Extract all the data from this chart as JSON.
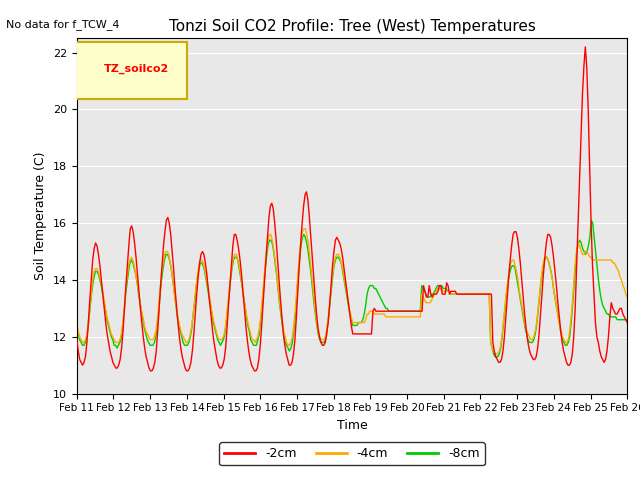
{
  "title": "Tonzi Soil CO2 Profile: Tree (West) Temperatures",
  "no_data_label": "No data for f_TCW_4",
  "xlabel": "Time",
  "ylabel": "Soil Temperature (C)",
  "ylim": [
    10,
    22.5
  ],
  "yticks": [
    10,
    12,
    14,
    16,
    18,
    20,
    22
  ],
  "xtick_labels": [
    "Feb 11",
    "Feb 12",
    "Feb 13",
    "Feb 14",
    "Feb 15",
    "Feb 16",
    "Feb 17",
    "Feb 18",
    "Feb 19",
    "Feb 20",
    "Feb 21",
    "Feb 22",
    "Feb 23",
    "Feb 24",
    "Feb 25",
    "Feb 26"
  ],
  "legend_label": "TZ_soilco2",
  "legend_box_color": "#ffffcc",
  "legend_box_edge": "#ccaa00",
  "series_labels": [
    "-2cm",
    "-4cm",
    "-8cm"
  ],
  "series_colors": [
    "#ff0000",
    "#ffaa00",
    "#00cc00"
  ],
  "bg_color": "#e8e8e8",
  "grid_color": "#ffffff",
  "n_days": 16,
  "times_per_day": 24,
  "red_data": [
    11.9,
    11.5,
    11.2,
    11.1,
    11.0,
    11.1,
    11.3,
    11.8,
    12.5,
    13.3,
    14.0,
    14.7,
    15.1,
    15.3,
    15.2,
    14.9,
    14.5,
    14.0,
    13.5,
    13.0,
    12.5,
    12.1,
    11.8,
    11.5,
    11.3,
    11.1,
    11.0,
    10.9,
    10.9,
    11.0,
    11.2,
    11.6,
    12.2,
    13.0,
    13.8,
    14.5,
    15.2,
    15.8,
    15.9,
    15.7,
    15.3,
    14.8,
    14.2,
    13.6,
    13.0,
    12.5,
    12.0,
    11.6,
    11.3,
    11.1,
    10.9,
    10.8,
    10.8,
    10.9,
    11.1,
    11.5,
    12.2,
    13.0,
    13.8,
    14.5,
    15.2,
    15.7,
    16.1,
    16.2,
    16.0,
    15.6,
    15.0,
    14.4,
    13.7,
    13.1,
    12.5,
    12.0,
    11.6,
    11.3,
    11.1,
    10.9,
    10.8,
    10.8,
    10.9,
    11.1,
    11.5,
    12.1,
    12.8,
    13.5,
    14.1,
    14.6,
    14.9,
    15.0,
    14.9,
    14.6,
    14.2,
    13.7,
    13.2,
    12.7,
    12.2,
    11.8,
    11.5,
    11.2,
    11.0,
    10.9,
    10.9,
    11.0,
    11.2,
    11.6,
    12.3,
    13.1,
    13.8,
    14.5,
    15.2,
    15.6,
    15.6,
    15.4,
    15.1,
    14.7,
    14.2,
    13.6,
    13.0,
    12.4,
    11.9,
    11.5,
    11.2,
    11.0,
    10.9,
    10.8,
    10.8,
    10.9,
    11.2,
    11.7,
    12.4,
    13.2,
    14.0,
    14.8,
    15.5,
    16.2,
    16.6,
    16.7,
    16.5,
    16.0,
    15.4,
    14.7,
    14.0,
    13.3,
    12.7,
    12.1,
    11.7,
    11.4,
    11.2,
    11.0,
    11.0,
    11.1,
    11.4,
    11.9,
    12.7,
    13.6,
    14.5,
    15.3,
    16.0,
    16.6,
    17.0,
    17.1,
    16.8,
    16.2,
    15.5,
    14.8,
    14.1,
    13.4,
    12.8,
    12.3,
    12.0,
    11.8,
    11.7,
    11.7,
    11.8,
    12.1,
    12.5,
    13.1,
    13.8,
    14.5,
    15.0,
    15.4,
    15.5,
    15.4,
    15.3,
    15.1,
    14.8,
    14.4,
    14.0,
    13.6,
    13.2,
    12.8,
    12.4,
    12.1,
    12.1,
    12.1,
    12.1,
    12.1,
    12.1,
    12.1,
    12.1,
    12.1,
    12.1,
    12.1,
    12.1,
    12.1,
    12.1,
    12.9,
    13.0,
    12.9,
    12.9,
    12.9,
    12.9,
    12.9,
    12.9,
    12.9,
    12.9,
    12.9,
    12.9,
    12.9,
    12.9,
    12.9,
    12.9,
    12.9,
    12.9,
    12.9,
    12.9,
    12.9,
    12.9,
    12.9,
    12.9,
    12.9,
    12.9,
    12.9,
    12.9,
    12.9,
    12.9,
    12.9,
    12.9,
    12.9,
    12.9,
    12.9,
    13.8,
    13.6,
    13.4,
    13.4,
    13.8,
    13.5,
    13.4,
    13.5,
    13.5,
    13.5,
    13.6,
    13.8,
    13.8,
    13.5,
    13.5,
    13.5,
    13.9,
    13.8,
    13.5,
    13.6,
    13.6,
    13.6,
    13.6,
    13.5,
    13.5,
    13.5,
    13.5,
    13.5,
    13.5,
    13.5,
    13.5,
    13.5,
    13.5,
    13.5,
    13.5,
    13.5,
    13.5,
    13.5,
    13.5,
    13.5,
    13.5,
    13.5,
    13.5,
    13.5,
    13.5,
    13.5,
    13.5,
    13.5,
    11.8,
    11.5,
    11.3,
    11.2,
    11.1,
    11.1,
    11.2,
    11.5,
    12.0,
    12.7,
    13.4,
    14.1,
    14.7,
    15.2,
    15.6,
    15.7,
    15.7,
    15.5,
    15.1,
    14.6,
    14.0,
    13.4,
    12.8,
    12.3,
    11.9,
    11.6,
    11.4,
    11.3,
    11.2,
    11.2,
    11.3,
    11.6,
    12.1,
    12.8,
    13.5,
    14.2,
    14.8,
    15.3,
    15.6,
    15.6,
    15.5,
    15.2,
    14.8,
    14.3,
    13.8,
    13.2,
    12.7,
    12.2,
    11.8,
    11.5,
    11.3,
    11.1,
    11.0,
    11.0,
    11.1,
    11.4,
    12.0,
    13.0,
    14.5,
    16.0,
    17.5,
    19.0,
    20.5,
    21.5,
    22.2,
    21.5,
    20.0,
    18.0,
    16.0,
    14.5,
    13.5,
    12.5,
    12.0,
    11.8,
    11.5,
    11.3,
    11.2,
    11.1,
    11.2,
    11.5,
    12.0,
    12.7,
    13.2,
    13.0,
    12.9,
    12.8,
    12.8,
    12.9,
    13.0,
    13.0,
    12.8,
    12.7,
    12.6,
    12.5
  ],
  "orange_data": [
    12.4,
    12.2,
    12.0,
    11.9,
    11.8,
    11.8,
    11.9,
    12.1,
    12.5,
    13.0,
    13.5,
    14.0,
    14.3,
    14.4,
    14.4,
    14.3,
    14.1,
    13.9,
    13.6,
    13.3,
    13.0,
    12.7,
    12.5,
    12.3,
    12.1,
    12.0,
    11.9,
    11.8,
    11.8,
    11.8,
    11.9,
    12.1,
    12.5,
    13.0,
    13.6,
    14.1,
    14.5,
    14.7,
    14.8,
    14.7,
    14.5,
    14.2,
    13.9,
    13.6,
    13.2,
    12.9,
    12.7,
    12.4,
    12.2,
    12.1,
    12.0,
    11.9,
    11.9,
    11.9,
    12.0,
    12.2,
    12.6,
    13.1,
    13.7,
    14.2,
    14.6,
    14.9,
    15.0,
    15.0,
    14.9,
    14.6,
    14.3,
    13.9,
    13.5,
    13.1,
    12.8,
    12.5,
    12.3,
    12.1,
    12.0,
    11.9,
    11.8,
    11.8,
    11.9,
    12.1,
    12.4,
    12.8,
    13.3,
    13.8,
    14.2,
    14.5,
    14.7,
    14.7,
    14.6,
    14.4,
    14.1,
    13.8,
    13.5,
    13.2,
    12.9,
    12.6,
    12.4,
    12.2,
    12.0,
    11.9,
    11.9,
    11.9,
    12.0,
    12.2,
    12.6,
    13.1,
    13.6,
    14.1,
    14.5,
    14.8,
    14.9,
    14.9,
    14.7,
    14.5,
    14.2,
    13.8,
    13.5,
    13.1,
    12.8,
    12.5,
    12.3,
    12.1,
    11.9,
    11.9,
    11.8,
    11.9,
    12.0,
    12.3,
    12.7,
    13.3,
    13.9,
    14.5,
    15.0,
    15.4,
    15.6,
    15.6,
    15.4,
    15.1,
    14.7,
    14.3,
    13.8,
    13.3,
    12.9,
    12.5,
    12.2,
    12.0,
    11.8,
    11.7,
    11.7,
    11.8,
    12.0,
    12.4,
    12.9,
    13.6,
    14.3,
    14.9,
    15.4,
    15.7,
    15.8,
    15.8,
    15.6,
    15.3,
    14.9,
    14.4,
    13.9,
    13.4,
    12.9,
    12.5,
    12.2,
    12.0,
    11.9,
    11.9,
    11.9,
    12.0,
    12.3,
    12.7,
    13.2,
    13.7,
    14.2,
    14.6,
    14.8,
    14.9,
    14.9,
    14.8,
    14.6,
    14.4,
    14.1,
    13.8,
    13.5,
    13.2,
    12.9,
    12.7,
    12.5,
    12.5,
    12.5,
    12.5,
    12.5,
    12.5,
    12.5,
    12.5,
    12.5,
    12.6,
    12.8,
    12.8,
    12.9,
    12.9,
    12.9,
    12.8,
    12.8,
    12.8,
    12.8,
    12.8,
    12.8,
    12.8,
    12.8,
    12.7,
    12.7,
    12.7,
    12.7,
    12.7,
    12.7,
    12.7,
    12.7,
    12.7,
    12.7,
    12.7,
    12.7,
    12.7,
    12.7,
    12.7,
    12.7,
    12.7,
    12.7,
    12.7,
    12.7,
    12.7,
    12.7,
    12.7,
    12.7,
    12.7,
    13.5,
    13.4,
    13.3,
    13.2,
    13.2,
    13.2,
    13.2,
    13.3,
    13.4,
    13.5,
    13.6,
    13.7,
    13.7,
    13.7,
    13.7,
    13.6,
    13.6,
    13.6,
    13.6,
    13.6,
    13.5,
    13.5,
    13.5,
    13.5,
    13.5,
    13.5,
    13.5,
    13.5,
    13.5,
    13.5,
    13.5,
    13.5,
    13.5,
    13.5,
    13.5,
    13.5,
    13.5,
    13.5,
    13.5,
    13.5,
    13.5,
    13.5,
    13.5,
    13.5,
    13.5,
    13.5,
    13.5,
    13.5,
    11.8,
    11.6,
    11.5,
    11.4,
    11.4,
    11.4,
    11.5,
    11.7,
    12.1,
    12.6,
    13.1,
    13.6,
    14.0,
    14.4,
    14.6,
    14.7,
    14.7,
    14.5,
    14.3,
    14.0,
    13.6,
    13.3,
    13.0,
    12.7,
    12.4,
    12.2,
    12.1,
    12.0,
    11.9,
    11.9,
    12.0,
    12.2,
    12.5,
    13.0,
    13.5,
    14.0,
    14.4,
    14.7,
    14.8,
    14.8,
    14.7,
    14.5,
    14.3,
    14.0,
    13.6,
    13.3,
    13.0,
    12.7,
    12.4,
    12.2,
    12.0,
    11.9,
    11.8,
    11.8,
    11.9,
    12.2,
    12.7,
    13.3,
    14.0,
    14.7,
    15.1,
    15.3,
    15.2,
    15.0,
    14.9,
    14.9,
    15.0,
    15.0,
    14.9,
    14.8,
    14.8,
    14.7,
    14.7,
    14.7,
    14.7,
    14.7,
    14.7,
    14.7,
    14.7,
    14.7,
    14.7,
    14.7,
    14.7,
    14.7,
    14.7,
    14.6,
    14.6,
    14.5,
    14.4,
    14.3,
    14.1,
    14.0,
    13.8,
    13.7,
    13.5,
    13.4
  ],
  "green_data": [
    12.3,
    12.1,
    11.9,
    11.8,
    11.7,
    11.7,
    11.8,
    12.0,
    12.4,
    12.9,
    13.4,
    13.8,
    14.1,
    14.3,
    14.3,
    14.2,
    14.0,
    13.8,
    13.5,
    13.2,
    12.9,
    12.6,
    12.4,
    12.2,
    12.0,
    11.9,
    11.7,
    11.7,
    11.6,
    11.7,
    11.8,
    12.0,
    12.4,
    12.9,
    13.5,
    13.9,
    14.3,
    14.6,
    14.7,
    14.6,
    14.4,
    14.2,
    13.9,
    13.5,
    13.2,
    12.9,
    12.6,
    12.3,
    12.1,
    11.9,
    11.8,
    11.7,
    11.7,
    11.7,
    11.8,
    12.0,
    12.4,
    12.9,
    13.5,
    14.0,
    14.4,
    14.7,
    14.9,
    14.9,
    14.8,
    14.6,
    14.3,
    13.9,
    13.5,
    13.1,
    12.7,
    12.4,
    12.2,
    12.0,
    11.8,
    11.7,
    11.7,
    11.7,
    11.8,
    12.0,
    12.3,
    12.8,
    13.2,
    13.7,
    14.1,
    14.4,
    14.6,
    14.6,
    14.5,
    14.3,
    14.0,
    13.7,
    13.4,
    13.1,
    12.8,
    12.5,
    12.3,
    12.1,
    11.9,
    11.8,
    11.7,
    11.8,
    11.9,
    12.1,
    12.5,
    13.0,
    13.5,
    14.0,
    14.4,
    14.7,
    14.8,
    14.8,
    14.7,
    14.4,
    14.1,
    13.8,
    13.4,
    13.1,
    12.7,
    12.4,
    12.2,
    11.9,
    11.8,
    11.7,
    11.7,
    11.7,
    11.9,
    12.1,
    12.6,
    13.1,
    13.7,
    14.3,
    14.8,
    15.2,
    15.4,
    15.4,
    15.3,
    15.0,
    14.6,
    14.2,
    13.7,
    13.2,
    12.8,
    12.4,
    12.1,
    11.8,
    11.7,
    11.6,
    11.5,
    11.6,
    11.8,
    12.2,
    12.7,
    13.4,
    14.1,
    14.7,
    15.2,
    15.5,
    15.6,
    15.5,
    15.3,
    15.0,
    14.6,
    14.2,
    13.7,
    13.2,
    12.8,
    12.4,
    12.1,
    11.9,
    11.8,
    11.8,
    11.8,
    11.9,
    12.2,
    12.6,
    13.1,
    13.6,
    14.1,
    14.5,
    14.7,
    14.8,
    14.8,
    14.7,
    14.6,
    14.3,
    14.0,
    13.7,
    13.4,
    13.1,
    12.8,
    12.6,
    12.4,
    12.4,
    12.4,
    12.4,
    12.5,
    12.5,
    12.5,
    12.6,
    12.8,
    13.1,
    13.5,
    13.7,
    13.8,
    13.8,
    13.8,
    13.7,
    13.7,
    13.6,
    13.5,
    13.4,
    13.3,
    13.2,
    13.1,
    13.0,
    13.0,
    12.9,
    12.9,
    12.9,
    12.9,
    12.9,
    12.9,
    12.9,
    12.9,
    12.9,
    12.9,
    12.9,
    12.9,
    12.9,
    12.9,
    12.9,
    12.9,
    12.9,
    12.9,
    12.9,
    12.9,
    12.9,
    12.9,
    12.9,
    13.8,
    13.7,
    13.6,
    13.5,
    13.4,
    13.4,
    13.4,
    13.5,
    13.5,
    13.6,
    13.7,
    13.8,
    13.8,
    13.8,
    13.8,
    13.7,
    13.7,
    13.7,
    13.6,
    13.6,
    13.5,
    13.5,
    13.5,
    13.5,
    13.5,
    13.5,
    13.5,
    13.5,
    13.5,
    13.5,
    13.5,
    13.5,
    13.5,
    13.5,
    13.5,
    13.5,
    13.5,
    13.5,
    13.5,
    13.5,
    13.5,
    13.5,
    13.5,
    13.5,
    13.5,
    13.5,
    13.5,
    13.5,
    11.8,
    11.6,
    11.4,
    11.3,
    11.3,
    11.3,
    11.4,
    11.6,
    12.0,
    12.5,
    13.0,
    13.5,
    13.9,
    14.2,
    14.4,
    14.5,
    14.5,
    14.4,
    14.1,
    13.8,
    13.5,
    13.2,
    12.9,
    12.6,
    12.3,
    12.1,
    11.9,
    11.8,
    11.8,
    11.8,
    11.9,
    12.1,
    12.4,
    12.9,
    13.4,
    13.9,
    14.3,
    14.6,
    14.8,
    14.8,
    14.7,
    14.5,
    14.3,
    14.0,
    13.6,
    13.3,
    13.0,
    12.7,
    12.4,
    12.1,
    11.9,
    11.8,
    11.7,
    11.7,
    11.8,
    12.0,
    12.5,
    13.1,
    13.8,
    14.5,
    15.0,
    15.3,
    15.4,
    15.3,
    15.1,
    15.0,
    14.9,
    15.0,
    15.2,
    15.5,
    16.1,
    16.0,
    15.5,
    15.0,
    14.5,
    14.0,
    13.6,
    13.3,
    13.1,
    13.0,
    12.9,
    12.8,
    12.8,
    12.7,
    12.7,
    12.7,
    12.7,
    12.7,
    12.6,
    12.6,
    12.6,
    12.6,
    12.6,
    12.6,
    12.6,
    12.6
  ]
}
